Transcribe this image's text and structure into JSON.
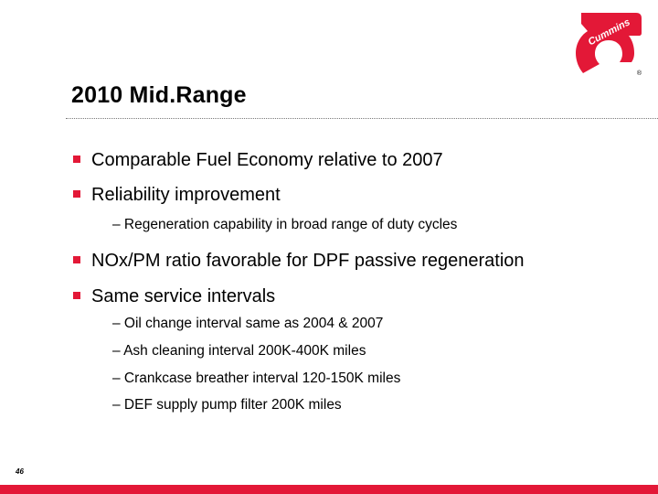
{
  "slide": {
    "title": "2010 Mid.Range",
    "page_number": "46",
    "brand": {
      "logo_text": "Cummins",
      "registered_mark": "®",
      "accent_color": "#e31837"
    },
    "bullets": [
      {
        "text": "Comparable Fuel Economy relative to 2007",
        "sub": []
      },
      {
        "text": "Reliability improvement",
        "sub": [
          "– Regeneration capability in broad range of duty cycles"
        ]
      },
      {
        "text": "NOx/PM ratio favorable for DPF passive regeneration",
        "sub": []
      },
      {
        "text": "Same service intervals",
        "sub": [
          "– Oil change interval same as 2004 & 2007",
          "– Ash cleaning interval  200K-400K miles",
          "– Crankcase breather interval 120-150K miles",
          "– DEF supply pump filter 200K miles"
        ]
      }
    ]
  }
}
